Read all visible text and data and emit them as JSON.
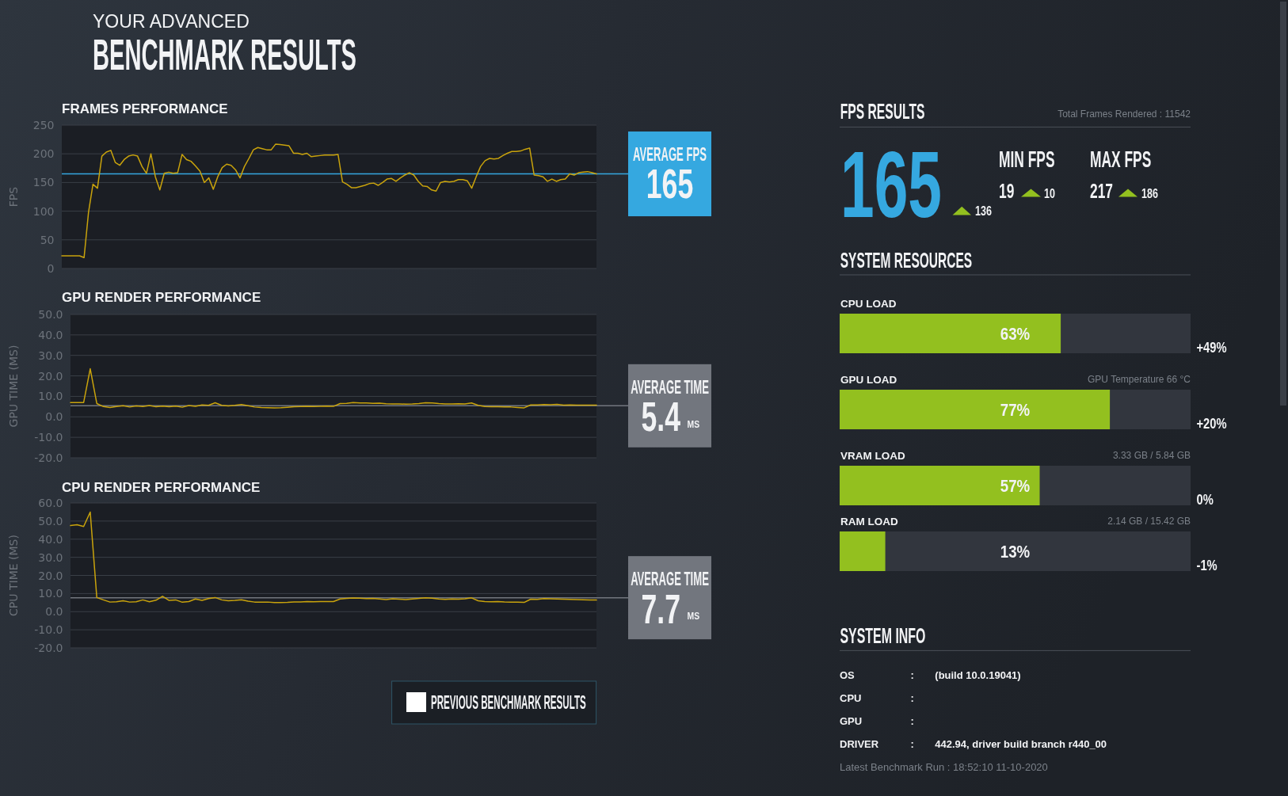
{
  "chart_data": [
    {
      "type": "other",
      "title": "YOUR ADVANCED",
      "subtitle": "BENCHMARK RESULTS",
      "annotations": [
        "PREVIOUS BENCHMARK RESULTS"
      ]
    },
    {
      "type": "line",
      "title": "FRAMES PERFORMANCE",
      "ylabel": "FPS",
      "categories": [
        null,
        null,
        null,
        null,
        null,
        null,
        null,
        null,
        null,
        null,
        null,
        null,
        null,
        null,
        null,
        null,
        null,
        null,
        null,
        null,
        null,
        null,
        null,
        null,
        null,
        null,
        null,
        null,
        null,
        null,
        null,
        null,
        null,
        null,
        null,
        null,
        null,
        null,
        null,
        null,
        null,
        null,
        null,
        null,
        null,
        null,
        null,
        null,
        null,
        null,
        null,
        null,
        null,
        null,
        null,
        null,
        null,
        null,
        null,
        null,
        null,
        null,
        null,
        null,
        null,
        null,
        null,
        null,
        null,
        null,
        null,
        null,
        null,
        null,
        null,
        null,
        null,
        null,
        null,
        null,
        null,
        null,
        null,
        null,
        null,
        null,
        null,
        null,
        null,
        null,
        null,
        null,
        null,
        null,
        null,
        null,
        null,
        null,
        null,
        null,
        null,
        null,
        null,
        null,
        null,
        null,
        null,
        null,
        null,
        null,
        null,
        null,
        null,
        null,
        null,
        null,
        null,
        null,
        null,
        null,
        null
      ],
      "series": [
        {
          "color": "#c9a30c",
          "values": [
            22,
            22,
            22,
            22,
            22,
            19,
            98,
            147,
            140,
            196,
            203,
            206,
            185,
            180,
            190,
            196,
            198,
            196,
            178,
            166,
            200,
            160,
            137,
            166,
            168,
            166,
            167,
            199,
            190,
            187,
            179,
            170,
            150,
            158,
            138,
            160,
            176,
            182,
            180,
            172,
            158,
            178,
            192,
            207,
            211,
            209,
            207,
            207,
            217,
            216,
            215,
            214,
            201,
            201,
            199,
            201,
            195,
            196,
            197,
            198,
            198,
            198,
            199,
            151,
            147,
            141,
            141,
            143,
            145,
            148,
            149,
            145,
            150,
            156,
            157,
            152,
            158,
            163,
            167,
            163,
            152,
            144,
            143,
            137,
            135,
            150,
            152,
            151,
            152,
            155,
            155,
            153,
            140,
            160,
            178,
            188,
            192,
            191,
            192,
            197,
            201,
            204,
            204,
            205,
            208,
            210,
            163,
            162,
            160,
            152,
            156,
            152,
            155,
            156,
            165,
            163,
            167,
            168,
            169,
            167,
            165
          ]
        }
      ],
      "ylim": [
        0,
        250
      ],
      "yticks": [
        0,
        50,
        100,
        150,
        200,
        250
      ],
      "grid": "y",
      "tick_labels": "y",
      "ref_lines": [
        {
          "axis": "y",
          "value": 165,
          "label": "AVERAGE FPS",
          "color": "#35a8e0"
        }
      ],
      "annotations": [
        "165"
      ]
    },
    {
      "type": "line",
      "title": "GPU RENDER PERFORMANCE",
      "ylabel": "GPU TIME (MS)",
      "categories": [
        null,
        null,
        null,
        null,
        null,
        null,
        null,
        null,
        null,
        null,
        null,
        null,
        null,
        null,
        null,
        null,
        null,
        null,
        null,
        null,
        null,
        null,
        null,
        null,
        null,
        null,
        null,
        null,
        null,
        null,
        null,
        null,
        null,
        null,
        null,
        null,
        null,
        null,
        null,
        null,
        null,
        null,
        null,
        null,
        null,
        null,
        null,
        null,
        null,
        null,
        null,
        null,
        null,
        null,
        null,
        null,
        null,
        null,
        null,
        null,
        null,
        null,
        null,
        null,
        null,
        null,
        null,
        null,
        null,
        null,
        null,
        null,
        null,
        null,
        null,
        null,
        null,
        null,
        null,
        null,
        null
      ],
      "series": [
        {
          "color": "#c9a30c",
          "values": [
            7,
            7,
            7,
            23.5,
            6.5,
            5,
            4.6,
            5,
            5.4,
            4.8,
            5.3,
            5,
            5.5,
            4.9,
            5.2,
            4.9,
            5.2,
            4.7,
            5.5,
            5.1,
            5.8,
            5.6,
            6.9,
            5.6,
            5.3,
            5.6,
            6,
            5.4,
            4.8,
            4.6,
            4.5,
            4.4,
            4.5,
            4.7,
            4.9,
            5,
            5.1,
            5,
            5.1,
            5.2,
            5.1,
            6.5,
            6.6,
            7,
            6.8,
            6.8,
            6.6,
            6.7,
            6.4,
            6.3,
            6.3,
            6.2,
            6.3,
            6.5,
            6.9,
            6.8,
            6.5,
            6.3,
            6.3,
            6.4,
            6.3,
            6.8,
            5.6,
            5,
            4.9,
            4.9,
            4.8,
            4.8,
            4.6,
            4.4,
            5.8,
            5.8,
            6,
            5.9,
            6.1,
            5.7,
            5.8,
            5.7,
            5.7,
            5.7,
            5.7
          ]
        }
      ],
      "ylim": [
        -20,
        50
      ],
      "yticks": [
        {
          "value": -20,
          "label": "-20.0"
        },
        {
          "value": -10,
          "label": "-10.0"
        },
        {
          "value": 0,
          "label": "0.0"
        },
        {
          "value": 10,
          "label": "10.0"
        },
        {
          "value": 20,
          "label": "20.0"
        },
        {
          "value": 30,
          "label": "30.0"
        },
        {
          "value": 40,
          "label": "40.0"
        },
        {
          "value": 50,
          "label": "50.0"
        }
      ],
      "grid": "y",
      "tick_labels": "y",
      "ref_lines": [
        {
          "axis": "y",
          "value": 5.4,
          "label": "AVERAGE TIME",
          "color": "#72767e"
        }
      ],
      "annotations": [
        "5.4",
        "MS"
      ]
    },
    {
      "type": "line",
      "title": "CPU RENDER PERFORMANCE",
      "ylabel": "CPU TIME (MS)",
      "categories": [
        null,
        null,
        null,
        null,
        null,
        null,
        null,
        null,
        null,
        null,
        null,
        null,
        null,
        null,
        null,
        null,
        null,
        null,
        null,
        null,
        null,
        null,
        null,
        null,
        null,
        null,
        null,
        null,
        null,
        null,
        null,
        null,
        null,
        null,
        null,
        null,
        null,
        null,
        null,
        null,
        null,
        null,
        null,
        null,
        null,
        null,
        null,
        null,
        null,
        null,
        null,
        null,
        null,
        null,
        null,
        null,
        null,
        null,
        null,
        null,
        null,
        null,
        null,
        null,
        null,
        null,
        null,
        null,
        null,
        null,
        null,
        null,
        null,
        null,
        null,
        null,
        null,
        null,
        null,
        null,
        null
      ],
      "series": [
        {
          "color": "#c9a30c",
          "values": [
            47.5,
            48,
            47,
            55,
            7.8,
            6.5,
            5.3,
            5.5,
            6,
            5.3,
            5.5,
            6.5,
            5.5,
            6.3,
            8.5,
            6.2,
            6.5,
            5.2,
            5.6,
            7,
            6.2,
            7.2,
            7.8,
            6.5,
            6,
            6.2,
            6.6,
            5.8,
            5.3,
            5.2,
            5.3,
            5,
            5,
            5.1,
            5.4,
            5.4,
            5.6,
            5.5,
            5.6,
            5.6,
            5.6,
            7,
            7.3,
            7.5,
            7.4,
            7.2,
            7.3,
            7,
            6.7,
            7.1,
            6.9,
            6.7,
            7,
            7.3,
            7.7,
            7.4,
            7,
            6.8,
            7,
            6.9,
            7.1,
            7.6,
            6,
            5.6,
            5.5,
            5.6,
            5.4,
            5.3,
            5.2,
            5.1,
            6.9,
            6.8,
            7.2,
            7.1,
            7,
            6.9,
            6.8,
            6.7,
            6.6,
            6.5,
            6.4
          ]
        }
      ],
      "ylim": [
        -20,
        60
      ],
      "yticks": [
        {
          "value": -20,
          "label": "-20.0"
        },
        {
          "value": -10,
          "label": "-10.0"
        },
        {
          "value": 0,
          "label": "0.0"
        },
        {
          "value": 10,
          "label": "10.0"
        },
        {
          "value": 20,
          "label": "20.0"
        },
        {
          "value": 30,
          "label": "30.0"
        },
        {
          "value": 40,
          "label": "40.0"
        },
        {
          "value": 50,
          "label": "50.0"
        },
        {
          "value": 60,
          "label": "60.0"
        }
      ],
      "grid": "y",
      "tick_labels": "y",
      "ref_lines": [
        {
          "axis": "y",
          "value": 7.7,
          "label": "AVERAGE TIME",
          "color": "#72767e"
        }
      ],
      "annotations": [
        "7.7",
        "MS"
      ]
    },
    {
      "type": "other",
      "title": "FPS RESULTS",
      "annotations": [
        "Total Frames Rendered : 11542",
        "165",
        "136",
        "MIN FPS",
        "19",
        "10",
        "MAX FPS",
        "217",
        "186"
      ]
    },
    {
      "type": "bar",
      "orientation": "horizontal",
      "title": "SYSTEM RESOURCES",
      "categories": [
        "CPU LOAD",
        "GPU LOAD",
        "VRAM LOAD",
        "RAM LOAD"
      ],
      "series": [
        {
          "color": "#93c01f",
          "values": [
            63,
            77,
            57,
            13
          ],
          "value_labels": [
            "63%",
            "77%",
            "57%",
            "13%"
          ]
        }
      ],
      "xlim": [
        0,
        100
      ],
      "tick_labels": "y",
      "annotations": [
        "+49%",
        "GPU Temperature 66 °C",
        "+20%",
        "3.33 GB / 5.84 GB",
        "0%",
        "2.14 GB / 15.42 GB",
        "-1%"
      ]
    },
    {
      "type": "other",
      "title": "SYSTEM INFO",
      "annotations": [
        "OS",
        ":",
        "(build 10.0.19041)",
        "CPU",
        ":",
        "GPU",
        ":",
        "DRIVER",
        ":",
        "442.94, driver build branch r440_00",
        "Latest Benchmark Run : 18:52:10 11-10-2020"
      ]
    }
  ]
}
